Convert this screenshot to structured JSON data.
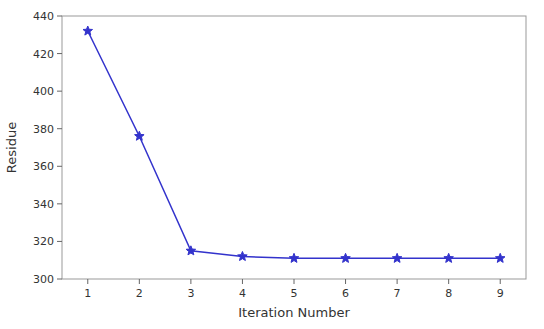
{
  "chart_data": {
    "type": "line",
    "x": [
      1,
      2,
      3,
      4,
      5,
      6,
      7,
      8,
      9
    ],
    "values": [
      432,
      376,
      315,
      312,
      311,
      311,
      311,
      311,
      311
    ],
    "color": "#3333CC",
    "marker": "star",
    "xlabel": "Iteration Number",
    "ylabel": "Residue",
    "xlim": [
      0.5,
      9.5
    ],
    "ylim": [
      300,
      440
    ],
    "xticks": [
      1,
      2,
      3,
      4,
      5,
      6,
      7,
      8,
      9
    ],
    "yticks": [
      300,
      320,
      340,
      360,
      380,
      400,
      420,
      440
    ]
  }
}
